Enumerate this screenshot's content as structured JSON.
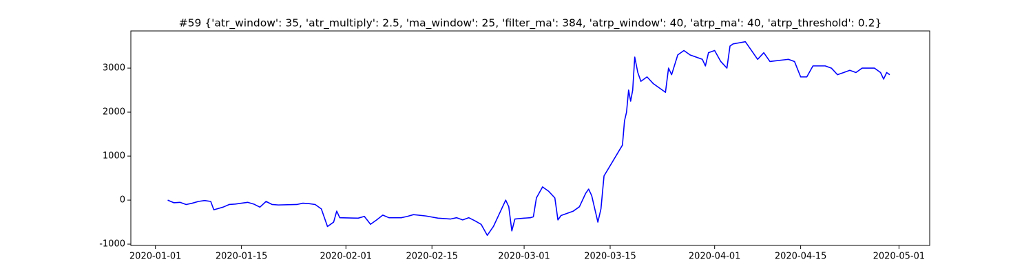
{
  "chart_data": {
    "type": "line",
    "title": "#59 {'atr_window': 35, 'atr_multiply': 2.5, 'ma_window': 25, 'filter_ma': 384, 'atrp_window': 40, 'atrp_ma': 40, 'atrp_threshold': 0.2}",
    "x": [
      "2020-01-03",
      "2020-01-04",
      "2020-01-05",
      "2020-01-06",
      "2020-01-07",
      "2020-01-08",
      "2020-01-09",
      "2020-01-10",
      "2020-01-10T12:00",
      "2020-01-11",
      "2020-01-12",
      "2020-01-13",
      "2020-01-14",
      "2020-01-15",
      "2020-01-16",
      "2020-01-17",
      "2020-01-18",
      "2020-01-19",
      "2020-01-20",
      "2020-01-21",
      "2020-01-24",
      "2020-01-25",
      "2020-01-26",
      "2020-01-27",
      "2020-01-28",
      "2020-01-29",
      "2020-01-30",
      "2020-01-30T12:00",
      "2020-01-31",
      "2020-02-03",
      "2020-02-04",
      "2020-02-05",
      "2020-02-06",
      "2020-02-07",
      "2020-02-08",
      "2020-02-10",
      "2020-02-11",
      "2020-02-12",
      "2020-02-14",
      "2020-02-16",
      "2020-02-18",
      "2020-02-19",
      "2020-02-20",
      "2020-02-21",
      "2020-02-22",
      "2020-02-23",
      "2020-02-24",
      "2020-02-25",
      "2020-02-26",
      "2020-02-27",
      "2020-02-27T12:00",
      "2020-02-28",
      "2020-02-28T12:00",
      "2020-03-01",
      "2020-03-02",
      "2020-03-02T12:00",
      "2020-03-03",
      "2020-03-04",
      "2020-03-05",
      "2020-03-06",
      "2020-03-06T12:00",
      "2020-03-07",
      "2020-03-09",
      "2020-03-10",
      "2020-03-11",
      "2020-03-11T12:00",
      "2020-03-12",
      "2020-03-12T12:00",
      "2020-03-13",
      "2020-03-13T12:00",
      "2020-03-14",
      "2020-03-17",
      "2020-03-17T08:00",
      "2020-03-17T16:00",
      "2020-03-18",
      "2020-03-18T08:00",
      "2020-03-18T16:00",
      "2020-03-19",
      "2020-03-19T12:00",
      "2020-03-20",
      "2020-03-21",
      "2020-03-22",
      "2020-03-23",
      "2020-03-24",
      "2020-03-24T12:00",
      "2020-03-25",
      "2020-03-26",
      "2020-03-27",
      "2020-03-28",
      "2020-03-30",
      "2020-03-30T12:00",
      "2020-03-31",
      "2020-04-01",
      "2020-04-02",
      "2020-04-03",
      "2020-04-03T12:00",
      "2020-04-04",
      "2020-04-06",
      "2020-04-07",
      "2020-04-08",
      "2020-04-09",
      "2020-04-10",
      "2020-04-13",
      "2020-04-14",
      "2020-04-15",
      "2020-04-16",
      "2020-04-17",
      "2020-04-19",
      "2020-04-20",
      "2020-04-21",
      "2020-04-22",
      "2020-04-23",
      "2020-04-24",
      "2020-04-25",
      "2020-04-27",
      "2020-04-28",
      "2020-04-28T12:00",
      "2020-04-29",
      "2020-04-29T12:00"
    ],
    "series": [
      {
        "color": "#0000ff",
        "values": [
          0,
          -60,
          -50,
          -100,
          -70,
          -30,
          -10,
          -30,
          -220,
          -200,
          -160,
          -100,
          -90,
          -70,
          -50,
          -90,
          -160,
          -30,
          -100,
          -110,
          -100,
          -70,
          -80,
          -100,
          -200,
          -600,
          -500,
          -250,
          -400,
          -410,
          -370,
          -550,
          -450,
          -340,
          -400,
          -400,
          -370,
          -330,
          -360,
          -410,
          -430,
          -400,
          -450,
          -400,
          -470,
          -550,
          -800,
          -600,
          -300,
          0,
          -150,
          -700,
          -430,
          -410,
          -400,
          -380,
          50,
          300,
          200,
          50,
          -450,
          -350,
          -250,
          -150,
          150,
          250,
          100,
          -200,
          -500,
          -200,
          550,
          1250,
          1800,
          2000,
          2500,
          2250,
          2500,
          3250,
          2900,
          2700,
          2800,
          2650,
          2550,
          2450,
          3000,
          2850,
          3300,
          3400,
          3300,
          3200,
          3050,
          3350,
          3400,
          3150,
          3000,
          3500,
          3550,
          3600,
          3400,
          3200,
          3350,
          3150,
          3200,
          3150,
          2800,
          2800,
          3050,
          3050,
          3000,
          2850,
          2900,
          2950,
          2900,
          3000,
          3000,
          2900,
          2750,
          2900,
          2850
        ]
      }
    ],
    "xlim": [
      "2019-12-28",
      "2020-05-06"
    ],
    "xticks": [
      "2020-01-01",
      "2020-01-15",
      "2020-02-01",
      "2020-02-15",
      "2020-03-01",
      "2020-03-15",
      "2020-04-01",
      "2020-04-15",
      "2020-05-01"
    ],
    "ylim": [
      -1030,
      3845
    ],
    "yticks": [
      -1000,
      0,
      1000,
      2000,
      3000
    ]
  }
}
